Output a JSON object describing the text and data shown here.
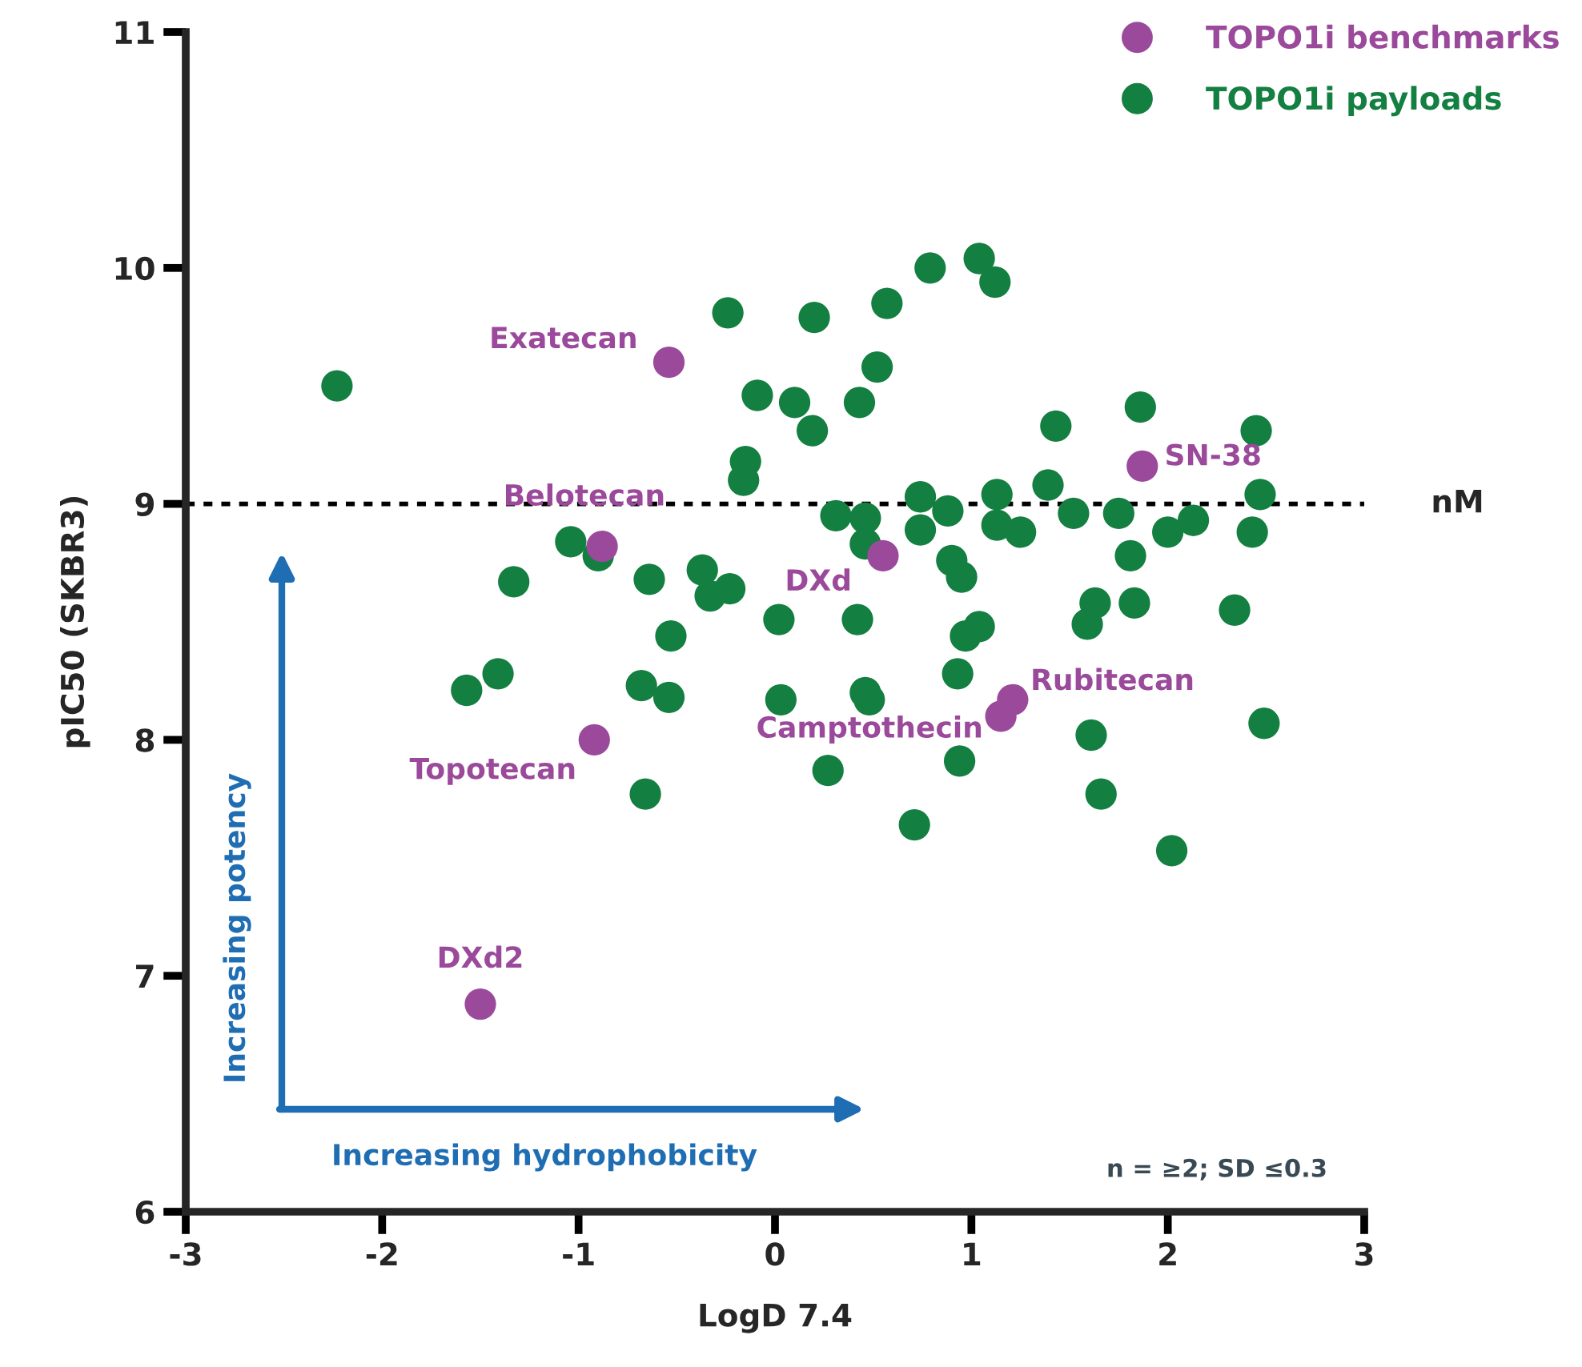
{
  "chart_data": {
    "type": "scatter",
    "xlabel": "LogD 7.4",
    "ylabel": "pIC50 (SKBR3)",
    "xlim": [
      -3,
      3
    ],
    "xticks": [
      {
        "value": -3,
        "label": "-3"
      },
      {
        "value": -2,
        "label": "-2"
      },
      {
        "value": -1,
        "label": "-1"
      },
      0,
      1,
      2,
      3
    ],
    "ylim": [
      6,
      11
    ],
    "yticks": [
      6,
      7,
      8,
      9,
      10,
      11
    ],
    "grid": false,
    "legend": "top right",
    "marker": "circle",
    "series": [
      {
        "name": "TOPO1i payloads",
        "color": "#137f40",
        "x": [
          -2.23,
          -0.24,
          0.2,
          0.57,
          0.79,
          1.04,
          1.12,
          0.52,
          -0.09,
          0.1,
          0.19,
          0.43,
          -0.15,
          -0.16,
          1.43,
          1.86,
          2.45,
          1.84,
          0.31,
          0.46,
          0.46,
          0.74,
          0.74,
          0.88,
          1.13,
          1.13,
          1.25,
          1.39,
          1.52,
          1.75,
          2.0,
          2.13,
          2.47,
          2.43,
          1.81,
          0.9,
          0.95,
          0.02,
          0.42,
          1.63,
          1.59,
          1.83,
          2.34,
          0.97,
          1.04,
          0.93,
          0.03,
          0.46,
          0.48,
          0.27,
          0.94,
          1.61,
          2.49,
          0.71,
          1.66,
          2.02,
          -1.04,
          -0.9,
          -1.33,
          -0.64,
          -0.37,
          -0.33,
          -0.23,
          -0.53,
          -1.41,
          -1.57,
          -0.68,
          -0.54,
          -0.66
        ],
        "values": [
          9.5,
          9.81,
          9.79,
          9.85,
          10.0,
          10.04,
          9.94,
          9.58,
          9.46,
          9.43,
          9.31,
          9.43,
          9.18,
          9.1,
          9.33,
          9.41,
          9.31,
          null,
          8.95,
          8.94,
          8.83,
          9.03,
          8.89,
          8.97,
          9.04,
          8.91,
          8.88,
          9.08,
          8.96,
          8.96,
          8.88,
          8.93,
          9.04,
          8.88,
          8.78,
          8.76,
          8.69,
          8.51,
          8.51,
          8.58,
          8.49,
          8.58,
          8.55,
          8.44,
          8.48,
          8.28,
          8.17,
          8.2,
          8.17,
          7.87,
          7.91,
          8.02,
          8.07,
          7.64,
          7.77,
          7.53,
          8.84,
          8.78,
          8.67,
          8.68,
          8.72,
          8.61,
          8.64,
          8.44,
          8.28,
          8.21,
          8.23,
          8.18,
          7.77
        ]
      },
      {
        "name": "TOPO1i benchmarks",
        "color": "#9b4a9b",
        "x": [
          -0.54,
          -0.88,
          0.55,
          1.87,
          1.21,
          1.15,
          -0.92,
          -1.5
        ],
        "values": [
          9.6,
          8.82,
          8.78,
          9.16,
          8.17,
          8.1,
          8.0,
          6.88
        ]
      }
    ],
    "ref_lines": [
      {
        "axis": "y",
        "value": 9,
        "label": "nM",
        "color": "#000000",
        "line_style": "dotted"
      }
    ],
    "annotations": [
      {
        "text": "Exatecan",
        "x": -0.54,
        "y": 9.6
      },
      {
        "text": "Belotecan",
        "x": -0.88,
        "y": 8.82
      },
      {
        "text": "DXd",
        "x": 0.55,
        "y": 8.78
      },
      {
        "text": "SN-38",
        "x": 1.87,
        "y": 9.16
      },
      {
        "text": "Rubitecan",
        "x": 1.21,
        "y": 8.17
      },
      {
        "text": "Camptothecin",
        "x": 1.15,
        "y": 8.1
      },
      {
        "text": "Topotecan",
        "x": -0.92,
        "y": 8.0
      },
      {
        "text": "DXd2",
        "x": -1.5,
        "y": 6.88
      },
      "Increasing potency",
      "Increasing hydrophobicity",
      "n = ≥2; SD ≤0.3"
    ]
  }
}
